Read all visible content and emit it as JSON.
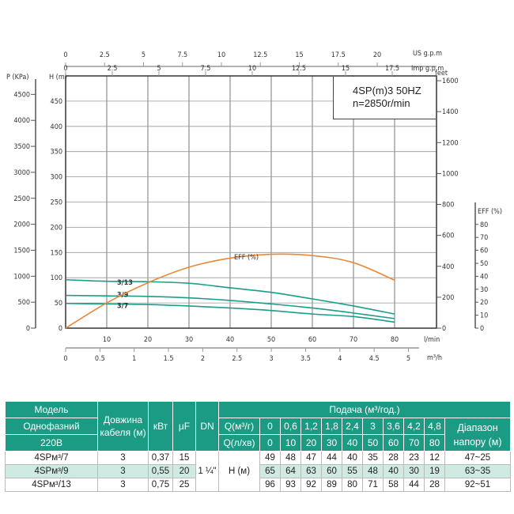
{
  "chart_data": {
    "type": "line",
    "info": {
      "line1": "4SP(m)3  50HZ",
      "line2": "n=2850r/min"
    },
    "x": [
      0,
      10,
      20,
      30,
      40,
      50,
      60,
      70,
      80
    ],
    "xlabel": "l/min",
    "xlim": [
      0,
      90
    ],
    "xticks": [
      10,
      20,
      30,
      40,
      50,
      60,
      70,
      80
    ],
    "x_m3h": {
      "label": "m³/h",
      "ticks": [
        "0",
        "0.5",
        "1",
        "1.5",
        "2",
        "2.5",
        "3",
        "3.5",
        "4",
        "4.5",
        "5"
      ]
    },
    "x_usgpm": {
      "label": "US g.p.m",
      "ticks": [
        "0",
        "2.5",
        "5",
        "7.5",
        "10",
        "12.5",
        "15",
        "17.5",
        "20"
      ]
    },
    "x_impgpm": {
      "label": "Imp g.p.m",
      "ticks": [
        "0",
        "2.5",
        "5",
        "7.5",
        "10",
        "12.5",
        "15",
        "17.5"
      ]
    },
    "ylabel": "H (m)",
    "ylim": [
      0,
      500
    ],
    "yticks": [
      0,
      50,
      100,
      150,
      200,
      250,
      300,
      350,
      400,
      450
    ],
    "y_pressure": {
      "label": "P (KPa)",
      "ticks": [
        0,
        500,
        1000,
        1500,
        2000,
        2500,
        3000,
        3500,
        4000,
        4500
      ]
    },
    "y_feet": {
      "label": "feet",
      "ticks": [
        0,
        200,
        400,
        600,
        800,
        1000,
        1200,
        1400,
        1600
      ]
    },
    "y_eff": {
      "label": "EFF (%)",
      "ticks": [
        0,
        10,
        20,
        30,
        40,
        50,
        60,
        70,
        80
      ]
    },
    "grid": true,
    "series": [
      {
        "name": "3/13",
        "axis": "H",
        "values": [
          96,
          93,
          92,
          89,
          80,
          71,
          58,
          44,
          28
        ]
      },
      {
        "name": "3/9",
        "axis": "H",
        "values": [
          65,
          64,
          63,
          60,
          55,
          48,
          40,
          30,
          19
        ]
      },
      {
        "name": "3/7",
        "axis": "H",
        "values": [
          49,
          48,
          47,
          44,
          40,
          35,
          28,
          23,
          12
        ]
      },
      {
        "name": "EFF (%)",
        "axis": "EFF",
        "values": [
          0,
          19.5,
          35,
          47,
          54,
          57,
          56,
          50.5,
          37
        ]
      }
    ],
    "colors": {
      "head": "#1a9e8a",
      "eff": "#e8893a"
    }
  },
  "table": {
    "h_model": "Модель",
    "h_phase": "Однофазний",
    "h_voltage": "220В",
    "h_cable": "Довжина кабеля (м)",
    "h_kw": "кВт",
    "h_uf": "μF",
    "h_dn": "DN",
    "h_flow": "Подача (м³/год.)",
    "h_q_m3": "Q(м³/г)",
    "h_q_l": "Q(л/хв)",
    "q_m3": [
      "0",
      "0,6",
      "1,2",
      "1,8",
      "2,4",
      "3",
      "3,6",
      "4,2",
      "4,8"
    ],
    "q_l": [
      "0",
      "10",
      "20",
      "30",
      "40",
      "50",
      "60",
      "70",
      "80"
    ],
    "h_range": "Діапазон напору (м)",
    "dn": "1 ¼\"",
    "h_label": "H (м)",
    "rows": [
      {
        "model": "4SPм³/7",
        "cable": "3",
        "kw": "0,37",
        "uf": "15",
        "h": [
          "49",
          "48",
          "47",
          "44",
          "40",
          "35",
          "28",
          "23",
          "12"
        ],
        "range": "47~25"
      },
      {
        "model": "4SPм³/9",
        "cable": "3",
        "kw": "0,55",
        "uf": "20",
        "h": [
          "65",
          "64",
          "63",
          "60",
          "55",
          "48",
          "40",
          "30",
          "19"
        ],
        "range": "63~35"
      },
      {
        "model": "4SPм³/13",
        "cable": "3",
        "kw": "0,75",
        "uf": "25",
        "h": [
          "96",
          "93",
          "92",
          "89",
          "80",
          "71",
          "58",
          "44",
          "28"
        ],
        "range": "92~51"
      }
    ],
    "colors": {
      "header": "#1b9b84",
      "alt_row": "#cfeae3"
    }
  }
}
